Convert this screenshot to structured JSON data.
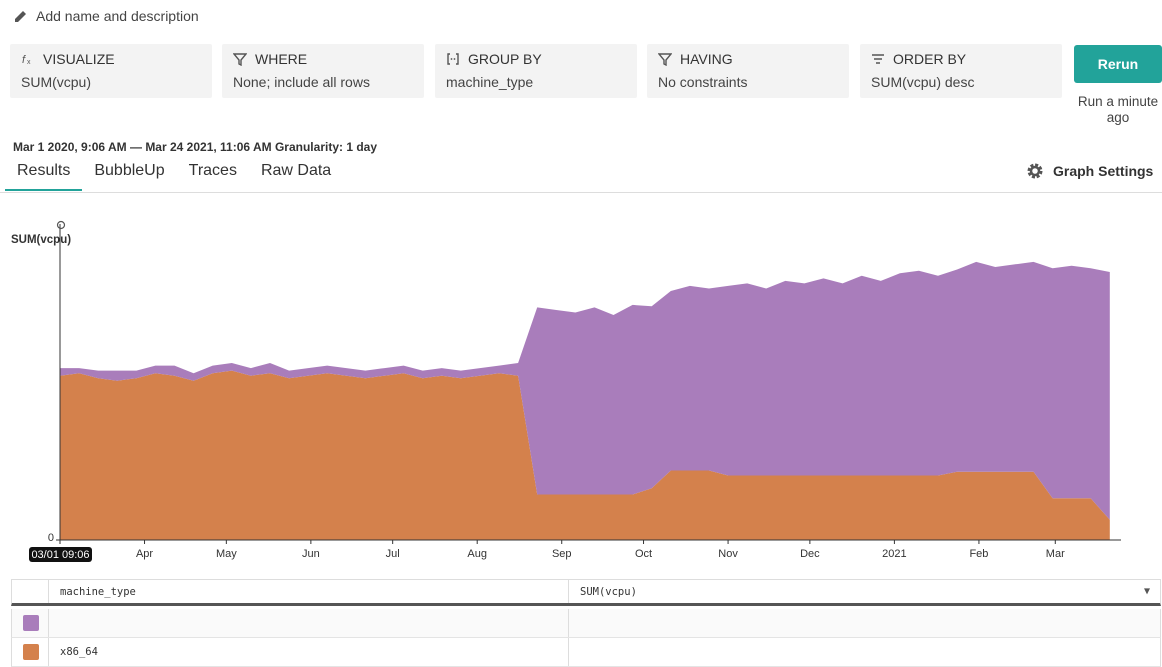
{
  "header": {
    "edit_link": "Add name and description"
  },
  "query": [
    {
      "label": "VISUALIZE",
      "value": "SUM(vcpu)"
    },
    {
      "label": "WHERE",
      "value": "None; include all rows"
    },
    {
      "label": "GROUP BY",
      "value": "machine_type"
    },
    {
      "label": "HAVING",
      "value": "No constraints"
    },
    {
      "label": "ORDER BY",
      "value": "SUM(vcpu) desc"
    }
  ],
  "rerun": {
    "button": "Rerun",
    "status": "Run a minute ago"
  },
  "time_range": {
    "start": "Mar 1 2020, 9:06 AM",
    "separator": "—",
    "end": "Mar 24 2021, 11:06 AM",
    "granularity": "Granularity: 1 day"
  },
  "tabs": [
    "Results",
    "BubbleUp",
    "Traces",
    "Raw Data"
  ],
  "graph_settings": "Graph Settings",
  "chart_data": {
    "type": "area",
    "stacked": true,
    "ylabel": "SUM(vcpu)",
    "x": [
      "2020-03-01",
      "2020-03-08",
      "2020-03-15",
      "2020-03-22",
      "2020-03-29",
      "2020-04-05",
      "2020-04-12",
      "2020-04-19",
      "2020-04-26",
      "2020-05-03",
      "2020-05-10",
      "2020-05-17",
      "2020-05-24",
      "2020-05-31",
      "2020-06-07",
      "2020-06-14",
      "2020-06-21",
      "2020-06-28",
      "2020-07-05",
      "2020-07-12",
      "2020-07-19",
      "2020-07-26",
      "2020-08-02",
      "2020-08-09",
      "2020-08-16",
      "2020-08-23",
      "2020-08-30",
      "2020-09-06",
      "2020-09-13",
      "2020-09-20",
      "2020-09-27",
      "2020-10-04",
      "2020-10-11",
      "2020-10-18",
      "2020-10-25",
      "2020-11-01",
      "2020-11-08",
      "2020-11-15",
      "2020-11-22",
      "2020-11-29",
      "2020-12-06",
      "2020-12-13",
      "2020-12-20",
      "2020-12-27",
      "2021-01-03",
      "2021-01-10",
      "2021-01-17",
      "2021-01-24",
      "2021-01-31",
      "2021-02-07",
      "2021-02-14",
      "2021-02-21",
      "2021-02-28",
      "2021-03-07",
      "2021-03-14",
      "2021-03-21"
    ],
    "series": [
      {
        "name": "x86_64",
        "color": "#d4814c",
        "values": [
          6.5,
          6.6,
          6.4,
          6.3,
          6.4,
          6.6,
          6.5,
          6.3,
          6.6,
          6.7,
          6.5,
          6.6,
          6.4,
          6.5,
          6.6,
          6.5,
          6.4,
          6.5,
          6.6,
          6.4,
          6.5,
          6.4,
          6.5,
          6.6,
          6.5,
          1.8,
          1.8,
          1.8,
          1.8,
          1.8,
          1.8,
          2.05,
          2.75,
          2.75,
          2.75,
          2.55,
          2.55,
          2.55,
          2.55,
          2.55,
          2.55,
          2.55,
          2.55,
          2.55,
          2.55,
          2.55,
          2.55,
          2.7,
          2.7,
          2.7,
          2.7,
          2.7,
          1.65,
          1.65,
          1.65,
          0.8
        ]
      },
      {
        "color": "#a97dbb",
        "values": [
          0.3,
          0.2,
          0.3,
          0.4,
          0.3,
          0.3,
          0.4,
          0.3,
          0.3,
          0.3,
          0.3,
          0.4,
          0.3,
          0.3,
          0.3,
          0.3,
          0.3,
          0.3,
          0.3,
          0.3,
          0.3,
          0.3,
          0.3,
          0.3,
          0.5,
          7.4,
          7.3,
          7.2,
          7.4,
          7.1,
          7.5,
          7.2,
          7.1,
          7.3,
          7.2,
          7.5,
          7.6,
          7.4,
          7.7,
          7.6,
          7.8,
          7.6,
          7.9,
          7.7,
          8.0,
          8.1,
          7.9,
          8.0,
          8.3,
          8.1,
          8.2,
          8.3,
          9.1,
          9.2,
          9.1,
          9.8
        ]
      }
    ],
    "ylim": [
      0,
      12.5
    ],
    "yticks": [
      0
    ],
    "xlim": [
      "2020-03-01",
      "2021-03-24"
    ],
    "xticks": [
      {
        "value": "2020-03-01",
        "label": "03/01 09:06"
      },
      {
        "value": "2020-04-01",
        "label": "Apr"
      },
      {
        "value": "2020-05-01",
        "label": "May"
      },
      {
        "value": "2020-06-01",
        "label": "Jun"
      },
      {
        "value": "2020-07-01",
        "label": "Jul"
      },
      {
        "value": "2020-08-01",
        "label": "Aug"
      },
      {
        "value": "2020-09-01",
        "label": "Sep"
      },
      {
        "value": "2020-10-01",
        "label": "Oct"
      },
      {
        "value": "2020-11-01",
        "label": "Nov"
      },
      {
        "value": "2020-12-01",
        "label": "Dec"
      },
      {
        "value": "2021-01-01",
        "label": "2021"
      },
      {
        "value": "2021-02-01",
        "label": "Feb"
      },
      {
        "value": "2021-03-01",
        "label": "Mar"
      }
    ]
  },
  "table": {
    "columns": [
      "machine_type",
      "SUM(vcpu)"
    ]
  }
}
